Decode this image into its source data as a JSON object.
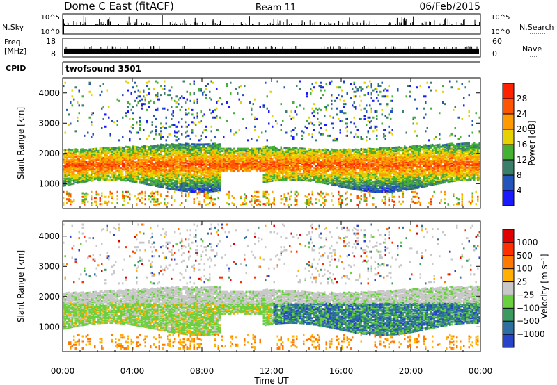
{
  "header": {
    "station": "Dome C East (fitACF)",
    "beam": "Beam 11",
    "date": "06/Feb/2015"
  },
  "chart_data": {
    "type": "heatmap",
    "xlabel": "Time UT",
    "xticks": [
      "00:00",
      "04:00",
      "08:00",
      "12:00",
      "16:00",
      "20:00",
      "00:00"
    ],
    "xrange_hours": [
      0,
      24
    ],
    "top_strips": {
      "nsky": {
        "label": "N.Sky",
        "tick_top": "10^5",
        "tick_bottom": "10^0",
        "right_label": "N.Search",
        "right_tick_top": "10^5",
        "right_tick_bottom": "10^0"
      },
      "freq": {
        "label_line1": "Freq.",
        "label_line2": "[MHz]",
        "ticks_left": [
          "18",
          "8"
        ],
        "ticks_right": [
          "60",
          "0"
        ],
        "right_label": "Nave",
        "range_left_mhz": [
          8,
          18
        ],
        "typical_mhz": 11,
        "range_right": [
          0,
          60
        ]
      },
      "cpid": {
        "label": "CPID",
        "value": "twofsound 3501"
      }
    },
    "panels": [
      {
        "name": "power",
        "ylabel": "Slant Range [km]",
        "yticks": [
          "1000",
          "2000",
          "3000",
          "4000"
        ],
        "yrange_km": [
          180,
          4500
        ],
        "colorbar_label": "Power [dB]",
        "colorbar_ticks": [
          "4",
          "8",
          "12",
          "16",
          "20",
          "24",
          "28"
        ],
        "colorbar_range": [
          0,
          30
        ],
        "colors": [
          "#1a1aff",
          "#2255bb",
          "#3a7f6a",
          "#44b034",
          "#e6d200",
          "#ff9a00",
          "#ff5500",
          "#ff2200"
        ]
      },
      {
        "name": "velocity",
        "ylabel": "Slant Range [km]",
        "yticks": [
          "1000",
          "2000",
          "3000",
          "4000"
        ],
        "yrange_km": [
          180,
          4500
        ],
        "colorbar_label": "Velocity [m s⁻¹]",
        "colorbar_ticks": [
          "1000",
          "500",
          "100",
          "25",
          "−25",
          "−100",
          "−500",
          "−1000"
        ],
        "colors": [
          "#2844c8",
          "#2c6fa0",
          "#3a9a60",
          "#6ad040",
          "#c8c8c8",
          "#ffb000",
          "#ff7800",
          "#ff3000",
          "#e00000"
        ]
      }
    ]
  }
}
